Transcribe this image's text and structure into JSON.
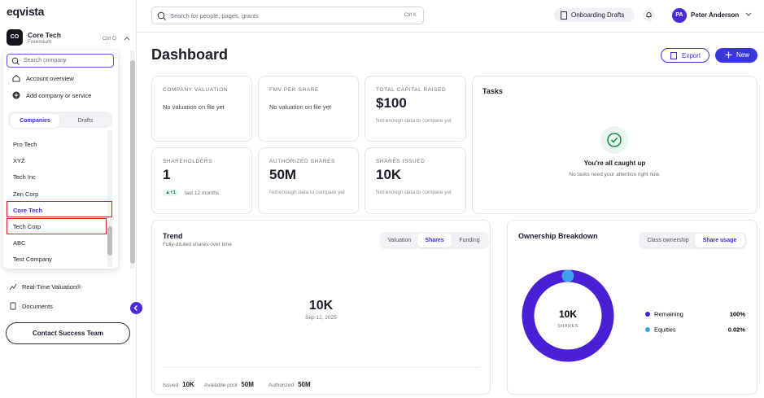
{
  "brand": "eqvista",
  "sidebar": {
    "company": {
      "initials": "CO",
      "name": "Core Tech",
      "plan": "Freemium",
      "shortcut": "Ctrl O"
    },
    "search_placeholder": "Search company",
    "menu": [
      "Account overview",
      "Add company or service"
    ],
    "tabs": [
      "Companies",
      "Drafts"
    ],
    "companies": [
      "Pro Tech",
      "XYZ",
      "Tech Inc",
      "Zen Corp",
      "Core Tech",
      "Tech Corp",
      "ABC",
      "Test Company"
    ],
    "nav": [
      "Real-Time Valuation®",
      "Documents"
    ],
    "contact": "Contact Success Team"
  },
  "topbar": {
    "search_placeholder": "Search for people, pages, grants",
    "shortcut": "Ctrl K",
    "onboarding": "Onboarding Drafts",
    "user": {
      "initials": "PA",
      "name": "Peter Anderson"
    }
  },
  "header": {
    "title": "Dashboard",
    "export": "Export",
    "new": "New"
  },
  "stats": [
    {
      "label": "COMPANY VALUATION",
      "note": "No valuation on file yet"
    },
    {
      "label": "FMV PER SHARE",
      "note": "No valuation on file yet"
    },
    {
      "label": "TOTAL CAPITAL RAISED",
      "value": "$100",
      "note": "Not enough data to compare yet"
    },
    {
      "label": "SHAREHOLDERS",
      "value": "1",
      "badge": "▲+1",
      "note": "last 12 months"
    },
    {
      "label": "AUTHORIZED SHARES",
      "value": "50M",
      "note": "Not enough data to compare yet"
    },
    {
      "label": "SHARES ISSUED",
      "value": "10K",
      "note": "Not enough data to compare yet"
    }
  ],
  "tasks": {
    "title": "Tasks",
    "heading": "You're all caught up",
    "text": "No tasks need your attention right now."
  },
  "trend": {
    "title": "Trend",
    "subtitle": "Fully-diluted shares over time",
    "tabs": [
      "Valuation",
      "Shares",
      "Funding"
    ],
    "value": "10K",
    "date": "Sep 12, 2025",
    "footer": [
      {
        "label": "Issued",
        "value": "10K"
      },
      {
        "label": "Available pool",
        "value": "50M"
      },
      {
        "label": "Authorized",
        "value": "50M"
      }
    ]
  },
  "ownership": {
    "title": "Ownership Breakdown",
    "tabs": [
      "Class ownership",
      "Share usage"
    ],
    "center_value": "10K",
    "center_label": "SHARES"
  },
  "chart_data": {
    "type": "pie",
    "categories": [
      "Remaining",
      "Equities"
    ],
    "values": [
      100,
      0.02
    ],
    "value_labels": [
      "100%",
      "0.02%"
    ],
    "colors": [
      "#4a1fd6",
      "#3ea2ea"
    ]
  }
}
